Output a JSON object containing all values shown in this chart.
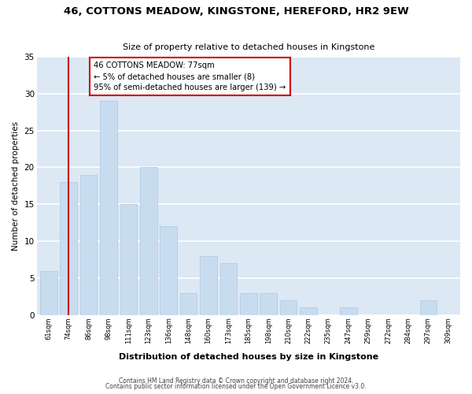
{
  "title": "46, COTTONS MEADOW, KINGSTONE, HEREFORD, HR2 9EW",
  "subtitle": "Size of property relative to detached houses in Kingstone",
  "xlabel": "Distribution of detached houses by size in Kingstone",
  "ylabel": "Number of detached properties",
  "bar_labels": [
    "61sqm",
    "74sqm",
    "86sqm",
    "98sqm",
    "111sqm",
    "123sqm",
    "136sqm",
    "148sqm",
    "160sqm",
    "173sqm",
    "185sqm",
    "198sqm",
    "210sqm",
    "222sqm",
    "235sqm",
    "247sqm",
    "259sqm",
    "272sqm",
    "284sqm",
    "297sqm",
    "309sqm"
  ],
  "bar_heights": [
    6,
    18,
    19,
    29,
    15,
    20,
    12,
    3,
    8,
    7,
    3,
    3,
    2,
    1,
    0,
    1,
    0,
    0,
    0,
    2,
    0
  ],
  "bar_color": "#c8dcf0",
  "bar_edge_color": "#aec8e0",
  "grid_color": "#ffffff",
  "bg_color": "#dce8f4",
  "property_line_color": "#cc0000",
  "property_bar_index": 1,
  "annotation_line1": "46 COTTONS MEADOW: 77sqm",
  "annotation_line2": "← 5% of detached houses are smaller (8)",
  "annotation_line3": "95% of semi-detached houses are larger (139) →",
  "annotation_box_color": "#ffffff",
  "annotation_box_edge": "#cc0000",
  "ylim": [
    0,
    35
  ],
  "yticks": [
    0,
    5,
    10,
    15,
    20,
    25,
    30,
    35
  ],
  "footer1": "Contains HM Land Registry data © Crown copyright and database right 2024.",
  "footer2": "Contains public sector information licensed under the Open Government Licence v3.0."
}
